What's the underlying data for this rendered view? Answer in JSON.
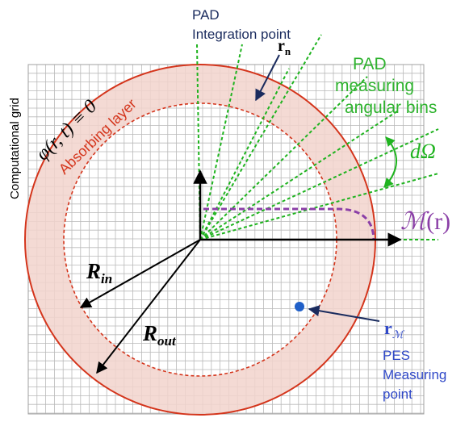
{
  "labels": {
    "pad_integration_line1": "PAD",
    "pad_integration_line2": "Integration point",
    "r_n_main": "r",
    "r_n_sub": "n",
    "pad_bins_line1": "PAD",
    "pad_bins_line2": "measuring",
    "pad_bins_line3": "angular bins",
    "d_omega": "dΩ",
    "m_r_m": "ℳ",
    "m_r_arg": "(r)",
    "r_m_main": "r",
    "r_m_sub": "ℳ",
    "pes_line1": "PES",
    "pes_line2": "Measuring",
    "pes_line3": "point",
    "r_in_main": "R",
    "r_in_sub": "in",
    "r_out_main": "R",
    "r_out_sub": "out",
    "comp_grid": "Computational grid",
    "absorbing_layer": "Absorbing layer",
    "boundary_condition": "φ(r, t) ≡ 0"
  },
  "colors": {
    "grid_line": "#b9b9b9",
    "ring_fill": "#f2d3cd",
    "ring_stroke": "#d4351c",
    "green": "#1fb31f",
    "purple": "#8b3fa7",
    "navy": "#1a2b5e",
    "blue": "#3049c8",
    "pes_point": "#1f5fc8",
    "black": "#000000"
  },
  "icons": {
    "pes_point": "filled-circle-icon"
  }
}
